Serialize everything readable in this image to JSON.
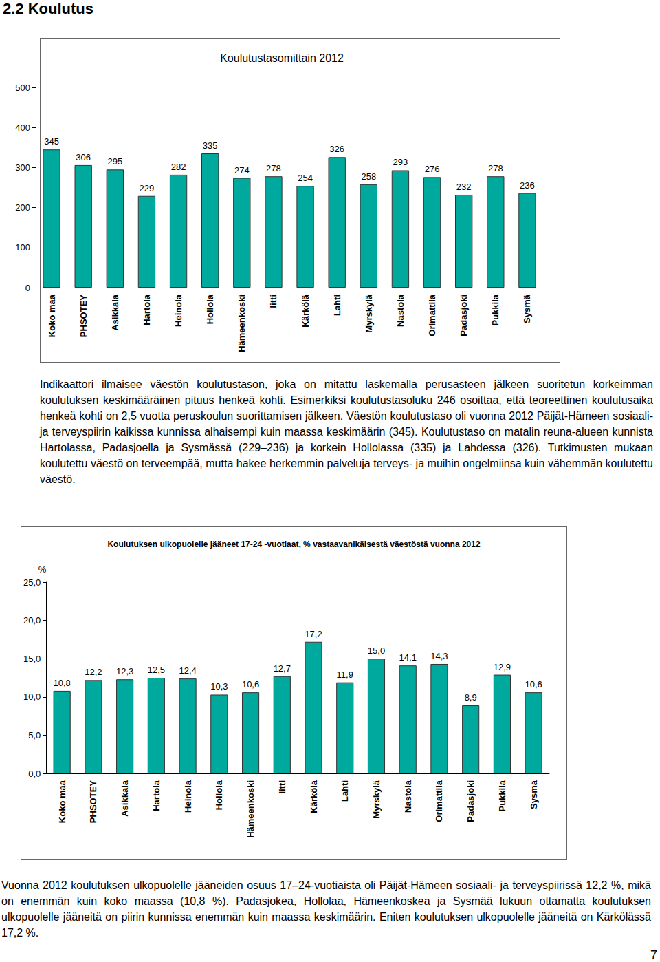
{
  "heading": "2.2 Koulutus",
  "chart_data": [
    {
      "type": "bar",
      "title": "Koulutustasomittain 2012",
      "categories": [
        "Koko maa",
        "PHSOTEY",
        "Asikkala",
        "Hartola",
        "Heinola",
        "Hollola",
        "Hämeenkoski",
        "Iitti",
        "Kärkölä",
        "Lahti",
        "Myrskylä",
        "Nastola",
        "Orimattila",
        "Padasjoki",
        "Pukkila",
        "Sysmä"
      ],
      "values": [
        345,
        306,
        295,
        229,
        282,
        335,
        274,
        278,
        254,
        326,
        258,
        293,
        276,
        232,
        278,
        236
      ],
      "color": "#00a99d",
      "ylim": [
        0,
        500
      ],
      "yticks": [
        0,
        100,
        200,
        300,
        400,
        500
      ],
      "grid": false,
      "data_labels": true
    },
    {
      "type": "bar",
      "title": "Koulutuksen ulkopuolelle jääneet 17-24 -vuotiaat, % vastaavanikäisestä väestöstä vuonna 2012",
      "y_label": "%",
      "categories": [
        "Koko maa",
        "PHSOTEY",
        "Asikkala",
        "Hartola",
        "Heinola",
        "Hollola",
        "Hämeenkoski",
        "Iitti",
        "Kärkölä",
        "Lahti",
        "Myrskylä",
        "Nastola",
        "Orimattila",
        "Padasjoki",
        "Pukkila",
        "Sysmä"
      ],
      "values": [
        10.8,
        12.2,
        12.3,
        12.5,
        12.4,
        10.3,
        10.6,
        12.7,
        17.2,
        11.9,
        15.0,
        14.1,
        14.3,
        8.9,
        12.9,
        10.6
      ],
      "value_labels": [
        "10,8",
        "12,2",
        "12,3",
        "12,5",
        "12,4",
        "10,3",
        "10,6",
        "12,7",
        "17,2",
        "11,9",
        "15,0",
        "14,1",
        "14,3",
        "8,9",
        "12,9",
        "10,6"
      ],
      "color": "#00a99d",
      "ylim": [
        0,
        25
      ],
      "yticks": [
        {
          "value": 0,
          "label": "0,0"
        },
        {
          "value": 5,
          "label": "5,0"
        },
        {
          "value": 10,
          "label": "10,0"
        },
        {
          "value": 15,
          "label": "15,0"
        },
        {
          "value": 20,
          "label": "20,0"
        },
        {
          "value": 25,
          "label": "25,0"
        }
      ],
      "grid": false,
      "data_labels": true
    }
  ],
  "paragraphs": [
    "Indikaattori ilmaisee väestön koulutustason, joka on mitattu laskemalla perusasteen jälkeen suoritetun korkeimman koulutuksen keskimääräinen pituus henkeä kohti. Esimerkiksi koulutustasoluku 246 osoittaa, että teoreettinen koulutusaika henkeä kohti on 2,5 vuotta peruskoulun suorittamisen jälkeen. Väestön koulutustaso oli vuonna 2012 Päijät-Hämeen sosiaali- ja terveyspiirin kaikissa kunnissa alhaisempi kuin maassa keskimäärin (345). Koulutustaso on matalin reuna-alueen kunnista Hartolassa, Padasjoella ja Sysmässä (229–236) ja korkein Hollolassa (335) ja Lahdessa (326). Tutkimusten mukaan koulutettu väestö on terveempää, mutta hakee herkemmin palveluja terveys- ja muihin ongelmiinsa kuin vähemmän koulutettu väestö.",
    "Vuonna 2012 koulutuksen ulkopuolelle jääneiden osuus 17–24-vuotiaista oli Päijät-Hämeen sosiaali- ja terveyspiirissä 12,2 %, mikä on enemmän kuin koko maassa (10,8 %). Padasjokea, Hollolaa, Hämeenkoskea ja Sysmää lukuun ottamatta koulutuksen ulkopuolelle jääneitä on piirin kunnissa enemmän kuin maassa keskimäärin. Eniten koulutuksen ulkopuolelle jääneitä on Kärkölässä 17,2 %."
  ],
  "page_number": 7
}
